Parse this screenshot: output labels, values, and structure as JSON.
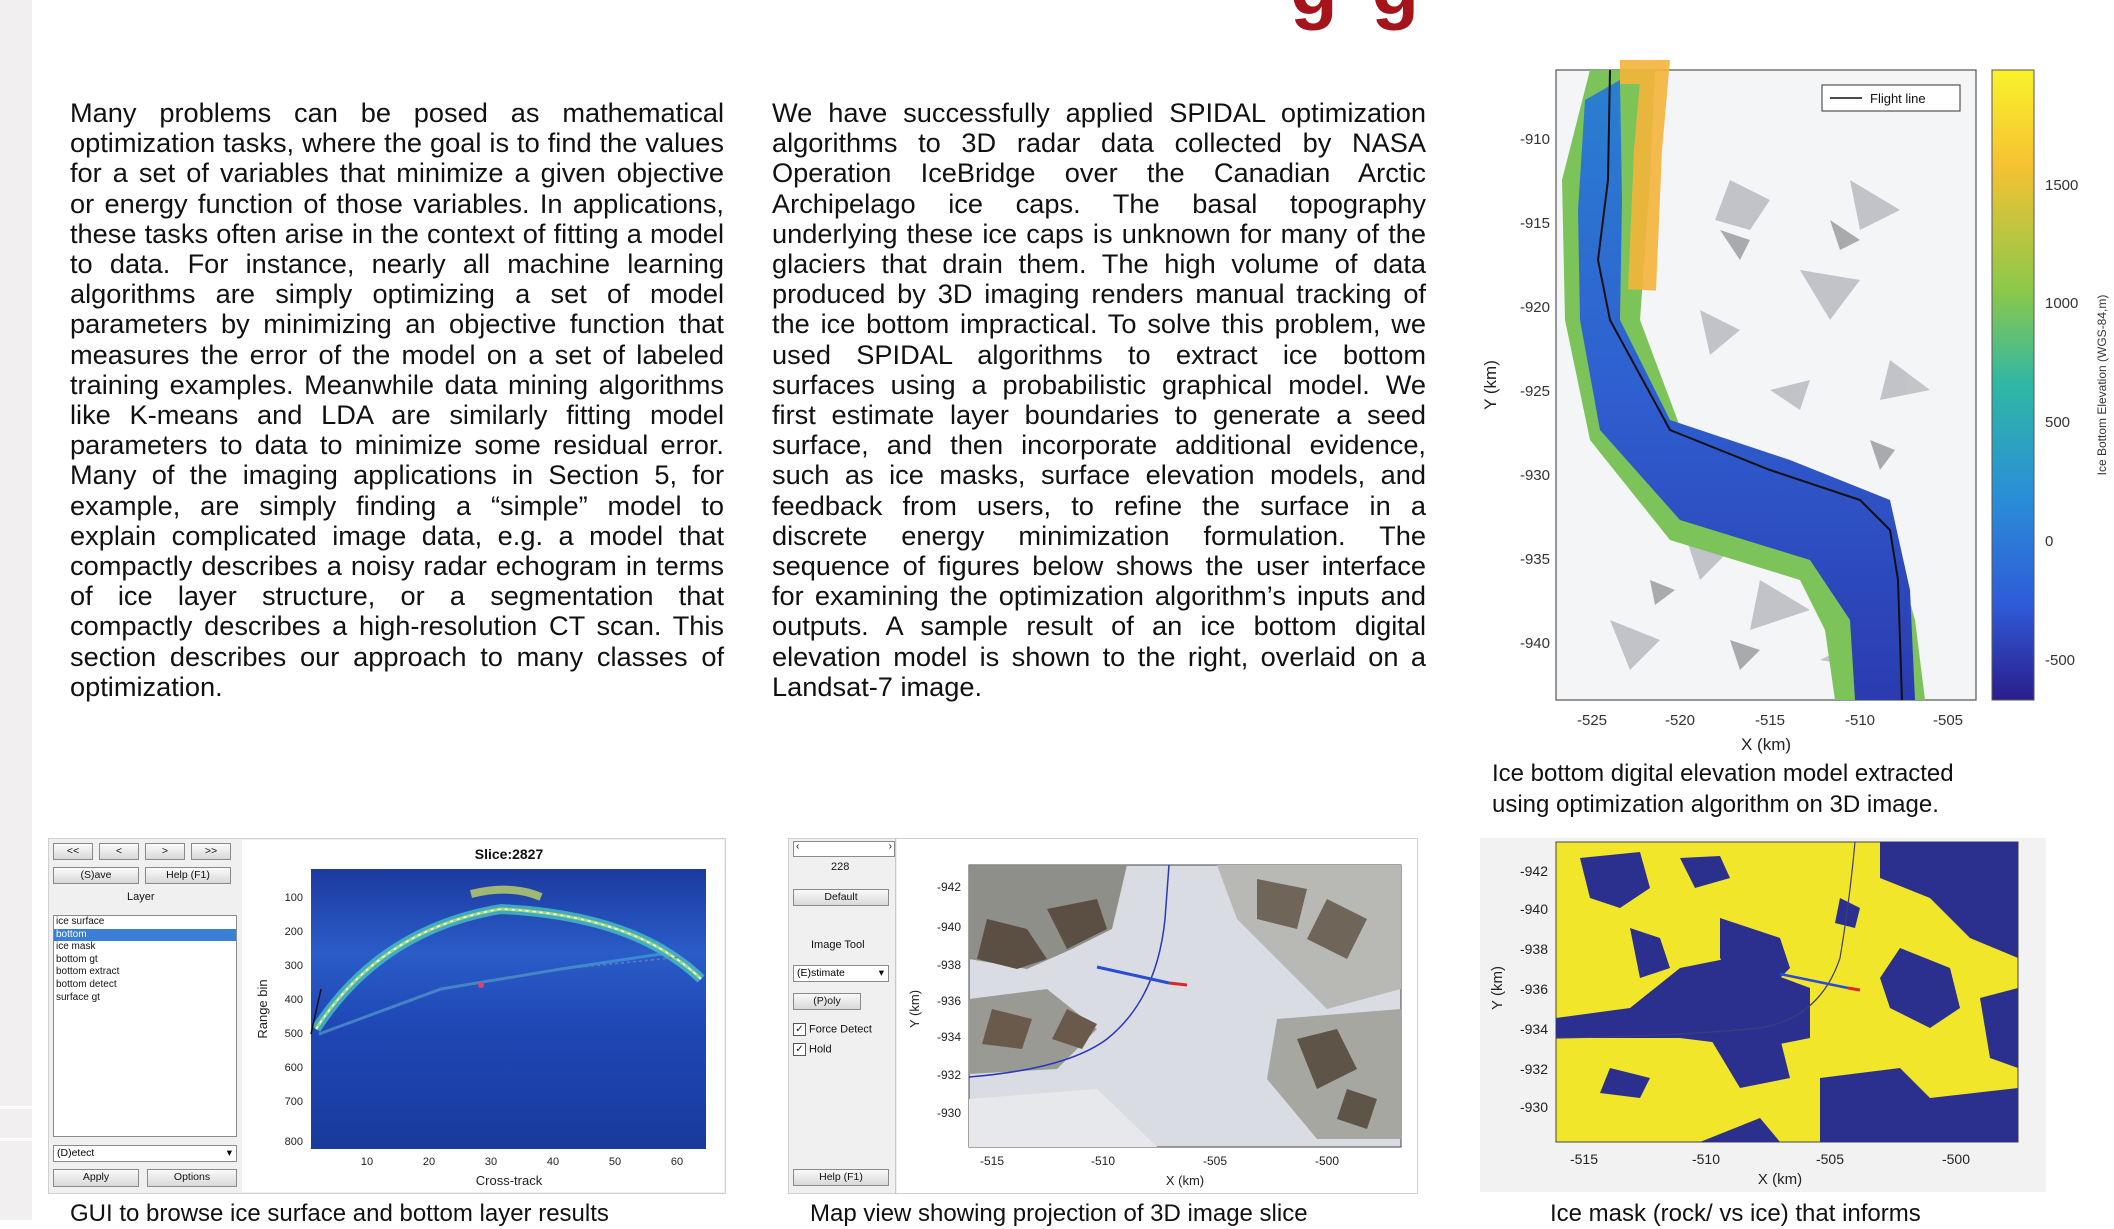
{
  "title_fragment": "g  g",
  "paragraph_left": "Many problems can be posed as mathematical optimization tasks, where the goal is to find the values for a set of variables that minimize a given objective or energy function of those variables. In applications, these tasks often arise in the context of fitting a model to data. For instance, nearly all machine learning algorithms are simply optimizing a set of model parameters by minimizing an objective function that measures the error of the model on a set of labeled training examples. Meanwhile data mining algorithms like K-means and LDA are similarly fitting model parameters to data to minimize some residual error. Many of the imaging applications in Section 5, for example, are simply finding a “simple” model to explain complicated image data, e.g. a model that compactly describes a noisy radar echogram in terms of ice layer structure, or a segmentation that compactly describes a high-resolution CT scan. This section describes our approach to many classes of optimization.",
  "paragraph_right": "We have successfully applied SPIDAL optimization algorithms to 3D radar data collected by NASA Operation IceBridge over the Canadian Arctic Archipelago ice caps. The basal topography underlying these ice caps is unknown for many of the glaciers that drain them. The high volume of data produced by 3D imaging renders manual tracking of the ice bottom impractical. To solve this problem, we used SPIDAL algorithms to extract ice bottom surfaces using a probabilistic graphical model. We first estimate layer boundaries to generate a seed surface, and then incorporate additional evidence, such as ice masks, surface elevation models, and feedback from users, to refine the surface in a discrete energy minimization formulation. The sequence of figures below shows the user interface for examining the optimization algorithm’s inputs and outputs. A sample result of an ice bottom digital elevation model is shown to the right, overlaid on a Landsat-7 image.",
  "dem_figure": {
    "legend": "Flight line",
    "y_ticks": [
      "-910",
      "-915",
      "-920",
      "-925",
      "-930",
      "-935",
      "-940"
    ],
    "x_ticks": [
      "-525",
      "-520",
      "-515",
      "-510",
      "-505"
    ],
    "xlabel": "X (km)",
    "ylabel": "Y (km)",
    "colorbar_ticks": [
      "1500",
      "1000",
      "500",
      "0",
      "-500"
    ],
    "colorbar_label": "Ice Bottom Elevation (WGS-84,m)",
    "caption_line1": "Ice bottom digital elevation model extracted",
    "caption_line2": "using optimization algorithm on 3D image."
  },
  "gui_figure": {
    "nav_buttons": [
      "<<",
      "<",
      ">",
      ">>"
    ],
    "save_button": "(S)ave",
    "help_button": "Help (F1)",
    "layer_label": "Layer",
    "layers": [
      "ice surface",
      "bottom",
      "ice mask",
      "bottom gt",
      "bottom extract",
      "bottom detect",
      "surface gt"
    ],
    "selected_layer": "bottom",
    "detect_select": "(D)etect",
    "apply_button": "Apply",
    "options_button": "Options",
    "plot_title": "Slice:2827",
    "y_ticks": [
      "100",
      "200",
      "300",
      "400",
      "500",
      "600",
      "700",
      "800"
    ],
    "x_ticks": [
      "10",
      "20",
      "30",
      "40",
      "50",
      "60"
    ],
    "ylabel": "Range bin",
    "xlabel": "Cross-track",
    "caption": "GUI to browse ice surface and bottom layer results"
  },
  "map_figure": {
    "slice_value": "228",
    "default_button": "Default",
    "image_tool_label": "Image Tool",
    "estimate_select": "(E)stimate",
    "poly_button": "(P)oly",
    "force_detect": "Force Detect",
    "hold": "Hold",
    "help_button": "Help (F1)",
    "y_ticks": [
      "-942",
      "-940",
      "-938",
      "-936",
      "-934",
      "-932",
      "-930"
    ],
    "x_ticks": [
      "-515",
      "-510",
      "-505",
      "-500"
    ],
    "ylabel": "Y (km)",
    "xlabel": "X (km)",
    "caption": "Map view showing projection of 3D image slice"
  },
  "mask_figure": {
    "y_ticks": [
      "-942",
      "-940",
      "-938",
      "-936",
      "-934",
      "-932",
      "-930"
    ],
    "x_ticks": [
      "-515",
      "-510",
      "-505",
      "-500"
    ],
    "ylabel": "Y (km)",
    "xlabel": "X (km)",
    "caption": "Ice mask (rock/ vs ice) that informs"
  },
  "colors": {
    "title_red": "#a5141b",
    "ice_yellow": "#f2e62a",
    "rock_navy": "#2b2f8e",
    "echogram_blue": "#1f3fa8"
  }
}
